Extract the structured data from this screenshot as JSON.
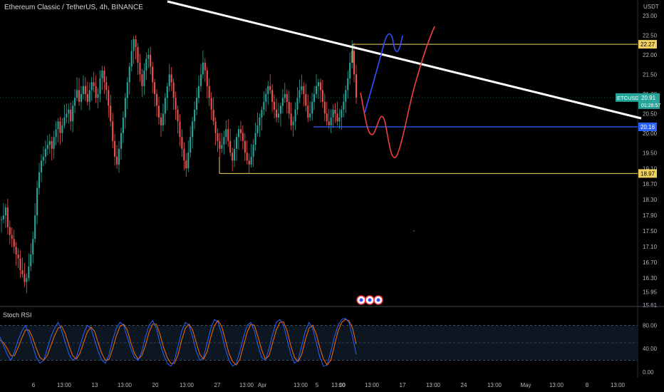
{
  "header": {
    "title": "Ethereum Classic / TetherUS, 4h, BINANCE"
  },
  "indicator": {
    "title": "Stoch RSI"
  },
  "chart_data": {
    "type": "candlestick",
    "symbol": "ETCUSDT",
    "price_axis": {
      "unit": "USDT",
      "ylim": [
        15.61,
        23.0
      ],
      "ticks": [
        "23.00",
        "22.50",
        "22.00",
        "21.50",
        "21.00",
        "20.50",
        "20.00",
        "19.50",
        "19.10",
        "18.70",
        "18.30",
        "17.90",
        "17.50",
        "17.10",
        "16.70",
        "16.30",
        "15.95",
        "15.61"
      ]
    },
    "x_ticks": [
      "6",
      "13:00",
      "13",
      "13:00",
      "20",
      "13:00",
      "27",
      "13:00",
      "Apr",
      "13:00",
      "5",
      "13:00",
      "10",
      "13:00",
      "17",
      "13:00",
      "24",
      "13:00",
      "May",
      "13:00",
      "8",
      "13:00"
    ],
    "current_price": {
      "symbol": "ETCUSDT",
      "price": "20.91",
      "countdown": "01:28:57",
      "color": "#26a69a"
    },
    "levels": [
      {
        "label": "22.27",
        "value": 22.27,
        "color": "#f0d060"
      },
      {
        "label": "20.16",
        "value": 20.16,
        "color": "#2962ff"
      },
      {
        "label": "18.97",
        "value": 18.97,
        "color": "#f0d060"
      }
    ],
    "price_path": [
      17.8,
      17.9,
      18.1,
      17.6,
      17.4,
      17.3,
      17.1,
      16.9,
      16.8,
      16.5,
      16.4,
      16.2,
      16.3,
      16.6,
      16.9,
      17.3,
      17.9,
      18.6,
      19.0,
      19.3,
      19.4,
      19.6,
      19.7,
      19.8,
      19.6,
      19.9,
      20.1,
      20.3,
      20.0,
      20.2,
      20.4,
      20.5,
      20.6,
      20.3,
      20.7,
      20.9,
      21.1,
      20.8,
      21.0,
      21.2,
      21.0,
      20.8,
      21.1,
      21.3,
      21.2,
      20.9,
      21.0,
      21.4,
      21.6,
      21.3,
      21.1,
      20.7,
      20.3,
      19.8,
      19.4,
      19.2,
      19.6,
      20.0,
      20.4,
      20.9,
      21.3,
      21.7,
      22.1,
      22.4,
      22.2,
      21.8,
      21.5,
      21.2,
      21.6,
      21.9,
      22.0,
      21.7,
      21.3,
      21.0,
      20.7,
      20.4,
      20.2,
      20.5,
      20.9,
      21.2,
      21.5,
      21.3,
      20.9,
      20.6,
      20.3,
      19.9,
      19.6,
      19.3,
      19.1,
      19.5,
      19.9,
      20.3,
      20.6,
      20.9,
      21.2,
      21.5,
      21.8,
      21.6,
      21.2,
      20.9,
      20.6,
      20.3,
      20.0,
      19.8,
      19.6,
      19.7,
      19.9,
      20.1,
      19.8,
      19.5,
      19.3,
      19.6,
      19.9,
      20.1,
      20.0,
      19.8,
      19.5,
      19.3,
      19.2,
      19.4,
      19.7,
      20.0,
      20.2,
      20.4,
      20.6,
      20.8,
      21.0,
      21.2,
      21.1,
      20.8,
      20.6,
      20.4,
      20.5,
      20.7,
      20.9,
      21.0,
      20.8,
      20.5,
      20.2,
      20.3,
      20.6,
      20.9,
      21.1,
      21.2,
      21.0,
      20.7,
      20.4,
      20.5,
      20.8,
      21.0,
      21.2,
      21.3,
      21.1,
      20.8,
      20.5,
      20.3,
      20.2,
      20.4,
      20.6,
      20.5,
      20.3,
      20.4,
      20.6,
      20.8,
      21.1,
      21.4,
      21.8,
      22.1,
      21.5,
      20.91
    ],
    "stoch_rsi": {
      "ticks": [
        "80.00",
        "40.00",
        "0.00"
      ],
      "bands": [
        80,
        50,
        20
      ],
      "k": [
        60,
        45,
        30,
        20,
        35,
        55,
        70,
        80,
        65,
        45,
        25,
        15,
        20,
        40,
        60,
        75,
        85,
        70,
        50,
        30,
        20,
        25,
        45,
        65,
        80,
        75,
        55,
        35,
        20,
        15,
        30,
        55,
        75,
        85,
        80,
        60,
        40,
        25,
        20,
        35,
        60,
        80,
        88,
        75,
        50,
        30,
        15,
        10,
        20,
        45,
        70,
        85,
        80,
        60,
        35,
        20,
        25,
        50,
        75,
        90,
        85,
        65,
        40,
        20,
        10,
        15,
        35,
        60,
        80,
        85,
        70,
        45,
        25,
        20,
        40,
        65,
        85,
        90,
        80,
        55,
        30,
        15,
        20,
        45,
        70,
        85,
        75,
        50,
        25,
        10,
        12,
        35,
        60,
        80,
        90,
        92,
        85,
        60,
        30
      ],
      "d": [
        55,
        50,
        40,
        28,
        28,
        42,
        58,
        72,
        72,
        58,
        40,
        25,
        20,
        28,
        45,
        62,
        75,
        78,
        65,
        45,
        28,
        22,
        32,
        50,
        68,
        77,
        70,
        50,
        32,
        20,
        22,
        40,
        62,
        78,
        82,
        72,
        50,
        32,
        22,
        28,
        45,
        68,
        82,
        82,
        65,
        42,
        25,
        15,
        15,
        30,
        55,
        75,
        82,
        72,
        50,
        30,
        22,
        35,
        60,
        80,
        88,
        78,
        55,
        32,
        18,
        12,
        22,
        45,
        68,
        82,
        80,
        60,
        38,
        22,
        28,
        50,
        72,
        85,
        86,
        70,
        45,
        25,
        18,
        30,
        55,
        75,
        80,
        65,
        42,
        22,
        12,
        20,
        45,
        70,
        85,
        90,
        88,
        75,
        48
      ]
    },
    "annotations": {
      "trendline": {
        "from": [
          0.25,
          23.2
        ],
        "to": [
          1.0,
          19.9
        ],
        "color": "#ffffff"
      },
      "blue_projection": "bullish path",
      "red_projection": "dip then rally"
    }
  }
}
